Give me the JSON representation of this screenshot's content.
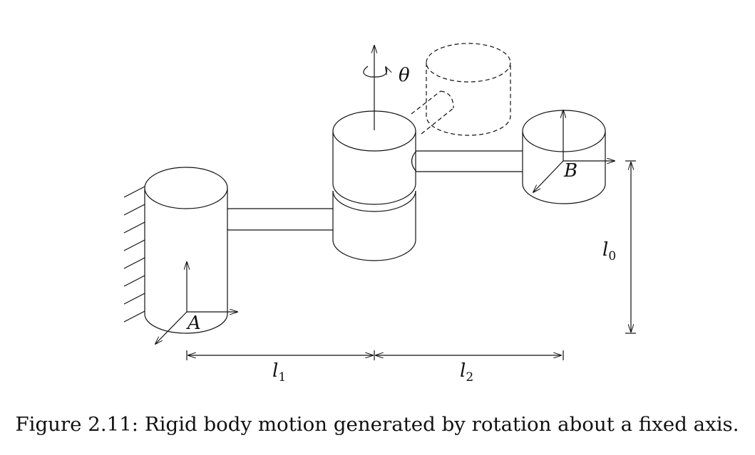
{
  "figure": {
    "caption": "Figure 2.11: Rigid body motion generated by rotation about a fixed axis.",
    "labels": {
      "theta": "θ",
      "frame_a": "A",
      "frame_b": "B",
      "l0_base": "l",
      "l0_sub": "0",
      "l1_base": "l",
      "l1_sub": "1",
      "l2_base": "l",
      "l2_sub": "2"
    }
  },
  "colors": {
    "ink": "#111111",
    "background": "#ffffff"
  }
}
